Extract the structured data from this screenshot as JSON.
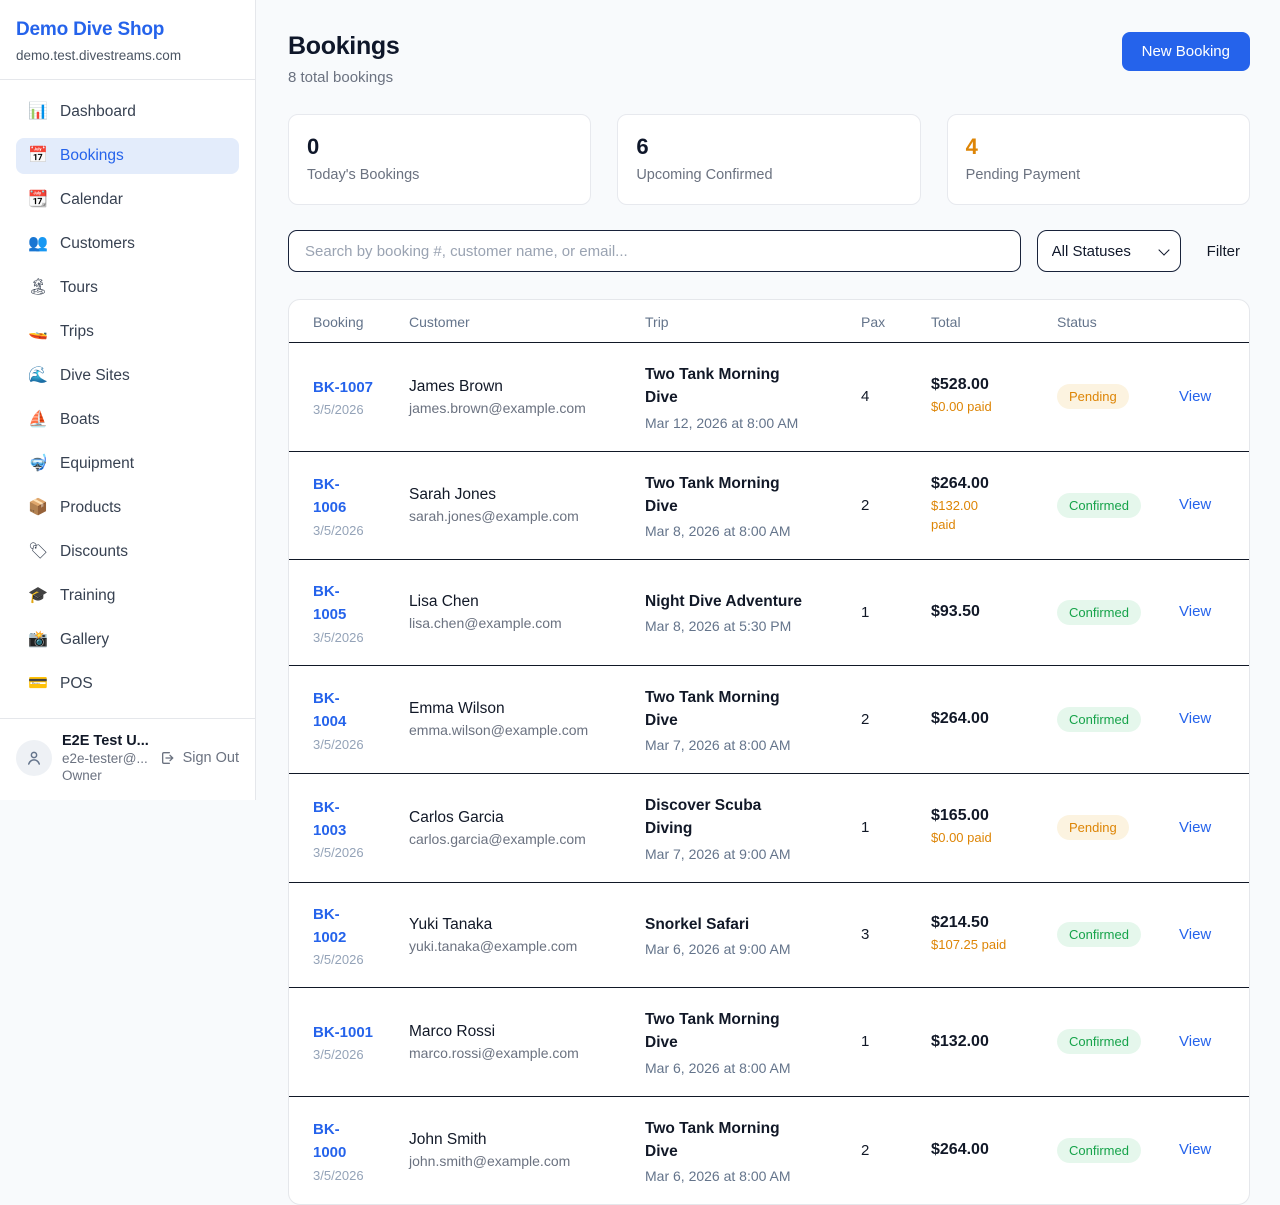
{
  "sidebar": {
    "logo": "Demo Dive Shop",
    "domain": "demo.test.divestreams.com",
    "items": [
      {
        "icon": "📊",
        "label": "Dashboard",
        "active": false
      },
      {
        "icon": "📅",
        "label": "Bookings",
        "active": true
      },
      {
        "icon": "📆",
        "label": "Calendar",
        "active": false
      },
      {
        "icon": "👥",
        "label": "Customers",
        "active": false
      },
      {
        "icon": "🏝",
        "label": "Tours",
        "active": false
      },
      {
        "icon": "🚤",
        "label": "Trips",
        "active": false
      },
      {
        "icon": "🌊",
        "label": "Dive Sites",
        "active": false
      },
      {
        "icon": "⛵",
        "label": "Boats",
        "active": false
      },
      {
        "icon": "🤿",
        "label": "Equipment",
        "active": false
      },
      {
        "icon": "📦",
        "label": "Products",
        "active": false
      },
      {
        "icon": "🏷",
        "label": "Discounts",
        "active": false
      },
      {
        "icon": "🎓",
        "label": "Training",
        "active": false
      },
      {
        "icon": "📸",
        "label": "Gallery",
        "active": false
      },
      {
        "icon": "💳",
        "label": "POS",
        "active": false
      }
    ],
    "user": {
      "name": "E2E Test U...",
      "email": "e2e-tester@...",
      "role": "Owner",
      "sign_out": "Sign Out"
    }
  },
  "header": {
    "title": "Bookings",
    "subtitle": "8 total bookings",
    "new_booking": "New Booking"
  },
  "stats": [
    {
      "value": "0",
      "label": "Today's Bookings",
      "accent": false
    },
    {
      "value": "6",
      "label": "Upcoming Confirmed",
      "accent": false
    },
    {
      "value": "4",
      "label": "Pending Payment",
      "accent": true
    }
  ],
  "controls": {
    "search_placeholder": "Search by booking #, customer name, or email...",
    "status_filter_value": "All Statuses",
    "filter_label": "Filter"
  },
  "table": {
    "columns": [
      "Booking",
      "Customer",
      "Trip",
      "Pax",
      "Total",
      "Status"
    ],
    "view_label": "View",
    "rows": [
      {
        "ref": "BK-1007",
        "date": "3/5/2026",
        "customer_name": "James Brown",
        "customer_email": "james.brown@example.com",
        "trip_name": "Two Tank Morning\nDive",
        "trip_date": "Mar 12, 2026 at 8:00 AM",
        "pax": "4",
        "total": "$528.00",
        "paid": "$0.00 paid",
        "status": "Pending"
      },
      {
        "ref": "BK-\n1006",
        "date": "3/5/2026",
        "customer_name": "Sarah Jones",
        "customer_email": "sarah.jones@example.com",
        "trip_name": "Two Tank Morning\nDive",
        "trip_date": "Mar 8, 2026 at 8:00 AM",
        "pax": "2",
        "total": "$264.00",
        "paid": "$132.00\npaid",
        "status": "Confirmed"
      },
      {
        "ref": "BK-\n1005",
        "date": "3/5/2026",
        "customer_name": "Lisa Chen",
        "customer_email": "lisa.chen@example.com",
        "trip_name": "Night Dive Adventure",
        "trip_date": "Mar 8, 2026 at 5:30 PM",
        "pax": "1",
        "total": "$93.50",
        "paid": null,
        "status": "Confirmed"
      },
      {
        "ref": "BK-\n1004",
        "date": "3/5/2026",
        "customer_name": "Emma Wilson",
        "customer_email": "emma.wilson@example.com",
        "trip_name": "Two Tank Morning\nDive",
        "trip_date": "Mar 7, 2026 at 8:00 AM",
        "pax": "2",
        "total": "$264.00",
        "paid": null,
        "status": "Confirmed"
      },
      {
        "ref": "BK-\n1003",
        "date": "3/5/2026",
        "customer_name": "Carlos Garcia",
        "customer_email": "carlos.garcia@example.com",
        "trip_name": "Discover Scuba\nDiving",
        "trip_date": "Mar 7, 2026 at 9:00 AM",
        "pax": "1",
        "total": "$165.00",
        "paid": "$0.00 paid",
        "status": "Pending"
      },
      {
        "ref": "BK-\n1002",
        "date": "3/5/2026",
        "customer_name": "Yuki Tanaka",
        "customer_email": "yuki.tanaka@example.com",
        "trip_name": "Snorkel Safari",
        "trip_date": "Mar 6, 2026 at 9:00 AM",
        "pax": "3",
        "total": "$214.50",
        "paid": "$107.25 paid",
        "status": "Confirmed"
      },
      {
        "ref": "BK-1001",
        "date": "3/5/2026",
        "customer_name": "Marco Rossi",
        "customer_email": "marco.rossi@example.com",
        "trip_name": "Two Tank Morning\nDive",
        "trip_date": "Mar 6, 2026 at 8:00 AM",
        "pax": "1",
        "total": "$132.00",
        "paid": null,
        "status": "Confirmed"
      },
      {
        "ref": "BK-\n1000",
        "date": "3/5/2026",
        "customer_name": "John Smith",
        "customer_email": "john.smith@example.com",
        "trip_name": "Two Tank Morning\nDive",
        "trip_date": "Mar 6, 2026 at 8:00 AM",
        "pax": "2",
        "total": "$264.00",
        "paid": null,
        "status": "Confirmed"
      }
    ]
  },
  "colors": {
    "accent_blue": "#2563eb",
    "pending_orange": "#dd8506",
    "confirmed_green": "#16a34a",
    "dark_divider": "#111827",
    "page_bg": "#f8fafc"
  }
}
